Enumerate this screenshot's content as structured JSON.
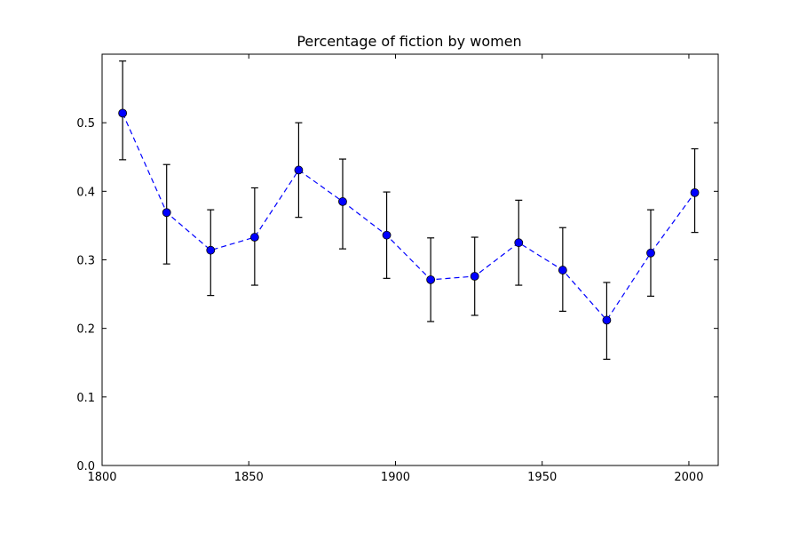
{
  "chart_data": {
    "type": "line",
    "title": "Percentage of fiction by women",
    "xlabel": "",
    "ylabel": "",
    "xlim": [
      1800,
      2010
    ],
    "ylim": [
      0.0,
      0.6
    ],
    "xticks": [
      1800,
      1850,
      1900,
      1950,
      2000
    ],
    "xtick_labels": [
      "1800",
      "1850",
      "1900",
      "1950",
      "2000"
    ],
    "yticks": [
      0.0,
      0.1,
      0.2,
      0.3,
      0.4,
      0.5
    ],
    "ytick_labels": [
      "0.0",
      "0.1",
      "0.2",
      "0.3",
      "0.4",
      "0.5"
    ],
    "grid": false,
    "series": [
      {
        "name": "fiction by women",
        "line_style": "dashed",
        "color": "#0000ff",
        "marker": "circle",
        "errorbar_color": "#000000",
        "x": [
          1807,
          1822,
          1837,
          1852,
          1867,
          1882,
          1897,
          1912,
          1927,
          1942,
          1957,
          1972,
          1987,
          2002
        ],
        "y": [
          0.514,
          0.369,
          0.314,
          0.333,
          0.431,
          0.385,
          0.336,
          0.271,
          0.276,
          0.325,
          0.285,
          0.212,
          0.31,
          0.398
        ],
        "y_low": [
          0.446,
          0.294,
          0.248,
          0.263,
          0.362,
          0.316,
          0.273,
          0.21,
          0.219,
          0.263,
          0.225,
          0.155,
          0.247,
          0.34
        ],
        "y_high": [
          0.59,
          0.439,
          0.373,
          0.405,
          0.5,
          0.447,
          0.399,
          0.332,
          0.333,
          0.387,
          0.347,
          0.267,
          0.373,
          0.462
        ]
      }
    ]
  }
}
